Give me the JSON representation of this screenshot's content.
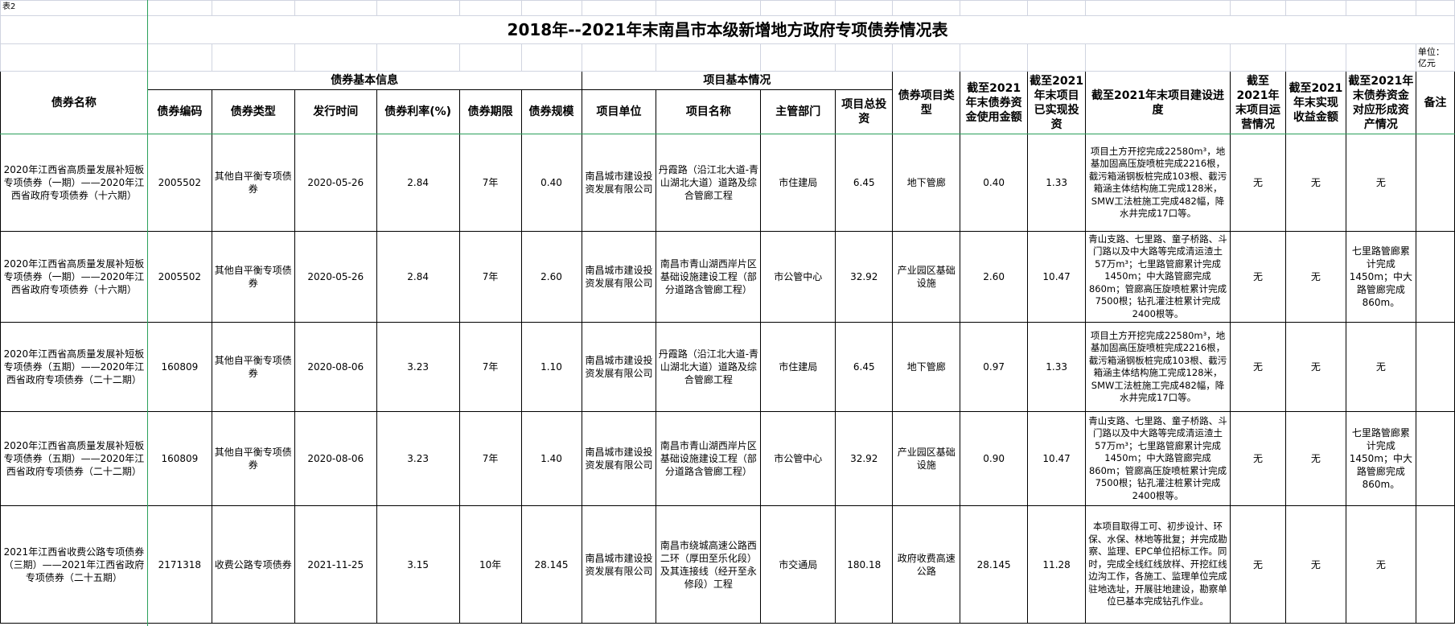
{
  "sheet_tag": "表2",
  "title": "2018年--2021年末南昌市本级新增地方政府专项债券情况表",
  "unit": "单位：亿元",
  "group_headers": {
    "bond_basic": "债券基本信息",
    "project_basic": "项目基本情况"
  },
  "columns": [
    "债券名称",
    "债券编码",
    "债券类型",
    "发行时间",
    "债券利率(%)",
    "债券期限",
    "债券规模",
    "项目单位",
    "项目名称",
    "主管部门",
    "项目总投资",
    "债券项目类型",
    "截至2021年末债券资金使用金额",
    "截至2021年末项目已实现投资",
    "截至2021年末项目建设进度",
    "截至2021年末项目运营情况",
    "截至2021年末实现收益金额",
    "截至2021年末债券资金对应形成资产情况",
    "备注"
  ],
  "rows": [
    [
      "2020年江西省高质量发展补短板专项债券（一期）——2020年江西省政府专项债券（十六期）",
      "2005502",
      "其他自平衡专项债券",
      "2020-05-26",
      "2.84",
      "7年",
      "0.40",
      "南昌城市建设投资发展有限公司",
      "丹霞路（沿江北大道-青山湖北大道）道路及综合管廊工程",
      "市住建局",
      "6.45",
      "地下管廊",
      "0.40",
      "1.33",
      "项目土方开挖完成22580m³，地基加固高压旋喷桩完成2216根，截污箱涵钢板桩完成103根、截污箱涵主体结构施工完成128米，SMW工法桩施工完成482幅，降水井完成17口等。",
      "无",
      "无",
      "无",
      ""
    ],
    [
      "2020年江西省高质量发展补短板专项债券（一期）——2020年江西省政府专项债券（十六期）",
      "2005502",
      "其他自平衡专项债券",
      "2020-05-26",
      "2.84",
      "7年",
      "2.60",
      "南昌城市建设投资发展有限公司",
      "南昌市青山湖西岸片区基础设施建设工程（部分道路含管廊工程）",
      "市公管中心",
      "32.92",
      "产业园区基础设施",
      "2.60",
      "10.47",
      "青山支路、七里路、童子桥路、斗门路以及中大路等完成清运渣土57万m³；七里路管廊累计完成1450m；中大路管廊完成860m；管廊高压旋喷桩累计完成7500根；钻孔灌注桩累计完成2400根等。",
      "无",
      "无",
      "七里路管廊累计完成1450m；中大路管廊完成860m。",
      ""
    ],
    [
      "2020年江西省高质量发展补短板专项债券（五期）——2020年江西省政府专项债券（二十二期）",
      "160809",
      "其他自平衡专项债券",
      "2020-08-06",
      "3.23",
      "7年",
      "1.10",
      "南昌城市建设投资发展有限公司",
      "丹霞路（沿江北大道-青山湖北大道）道路及综合管廊工程",
      "市住建局",
      "6.45",
      "地下管廊",
      "0.97",
      "1.33",
      "项目土方开挖完成22580m³，地基加固高压旋喷桩完成2216根，截污箱涵钢板桩完成103根、截污箱涵主体结构施工完成128米，SMW工法桩施工完成482幅，降水井完成17口等。",
      "无",
      "无",
      "无",
      ""
    ],
    [
      "2020年江西省高质量发展补短板专项债券（五期）——2020年江西省政府专项债券（二十二期）",
      "160809",
      "其他自平衡专项债券",
      "2020-08-06",
      "3.23",
      "7年",
      "1.40",
      "南昌城市建设投资发展有限公司",
      "南昌市青山湖西岸片区基础设施建设工程（部分道路含管廊工程）",
      "市公管中心",
      "32.92",
      "产业园区基础设施",
      "0.90",
      "10.47",
      "青山支路、七里路、童子桥路、斗门路以及中大路等完成清运渣土57万m³；七里路管廊累计完成1450m；中大路管廊完成860m；管廊高压旋喷桩累计完成7500根；钻孔灌注桩累计完成2400根等。",
      "无",
      "无",
      "七里路管廊累计完成1450m；中大路管廊完成860m。",
      ""
    ],
    [
      "2021年江西省收费公路专项债券（三期）——2021年江西省政府专项债券（二十五期）",
      "2171318",
      "收费公路专项债券",
      "2021-11-25",
      "3.15",
      "10年",
      "28.145",
      "南昌城市建设投资发展有限公司",
      "南昌市绕城高速公路西二环（厚田至乐化段）及其连接线（经开至永修段）工程",
      "市交通局",
      "180.18",
      "政府收费高速公路",
      "28.145",
      "11.28",
      "本项目取得工可、初步设计、环保、水保、林地等批复；并完成勘察、监理、EPC单位招标工作。同时，完成全线红线放样、开挖红线边沟工作，各施工、监理单位完成驻地选址，开展驻地建设，勘察单位已基本完成钻孔作业。",
      "无",
      "无",
      "无",
      ""
    ]
  ]
}
